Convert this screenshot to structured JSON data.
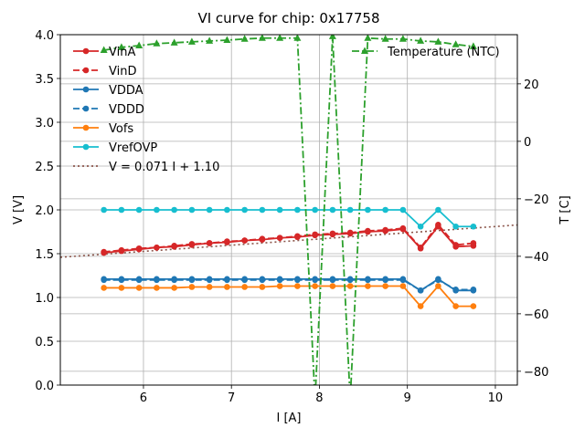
{
  "chart_data": {
    "type": "line",
    "title": "VI curve for chip: 0x17758",
    "xlabel": "I [A]",
    "ylabel": "V [V]",
    "y2label": "T [C]",
    "xlim": [
      5.055,
      10.25
    ],
    "ylim": [
      0.0,
      4.0
    ],
    "y2lim": [
      -84.8,
      37.1
    ],
    "grid": true,
    "xticks": [
      "6",
      "7",
      "8",
      "9",
      "10"
    ],
    "xtick_values": [
      6,
      7,
      8,
      9,
      10
    ],
    "yticks": [
      "0.0",
      "0.5",
      "1.0",
      "1.5",
      "2.0",
      "2.5",
      "3.0",
      "3.5",
      "4.0"
    ],
    "ytick_values": [
      0.0,
      0.5,
      1.0,
      1.5,
      2.0,
      2.5,
      3.0,
      3.5,
      4.0
    ],
    "y2ticks": [
      "20",
      "0",
      "−20",
      "−40",
      "−60",
      "−80"
    ],
    "y2tick_values": [
      20,
      0,
      -20,
      -40,
      -60,
      -80
    ],
    "x": [
      5.55,
      5.75,
      5.95,
      6.15,
      6.35,
      6.55,
      6.75,
      6.95,
      7.15,
      7.35,
      7.55,
      7.75,
      7.95,
      8.15,
      8.35,
      8.55,
      8.75,
      8.95,
      9.15,
      9.35,
      9.55,
      9.75
    ],
    "series": [
      {
        "name": "VinA",
        "axis": "left",
        "color": "#d62728",
        "style": "solid",
        "marker": "circle",
        "values": [
          1.51,
          1.53,
          1.55,
          1.57,
          1.58,
          1.6,
          1.62,
          1.63,
          1.65,
          1.66,
          1.68,
          1.69,
          1.71,
          1.72,
          1.73,
          1.75,
          1.76,
          1.78,
          1.56,
          1.81,
          1.58,
          1.59
        ]
      },
      {
        "name": "VinD",
        "axis": "left",
        "color": "#d62728",
        "style": "dashed",
        "marker": "circle",
        "values": [
          1.52,
          1.54,
          1.56,
          1.57,
          1.59,
          1.61,
          1.62,
          1.64,
          1.65,
          1.67,
          1.68,
          1.7,
          1.72,
          1.73,
          1.74,
          1.76,
          1.77,
          1.79,
          1.57,
          1.83,
          1.6,
          1.62
        ]
      },
      {
        "name": "VDDA",
        "axis": "left",
        "color": "#1f77b4",
        "style": "solid",
        "marker": "circle",
        "values": [
          1.21,
          1.21,
          1.21,
          1.21,
          1.21,
          1.21,
          1.21,
          1.21,
          1.21,
          1.21,
          1.21,
          1.21,
          1.21,
          1.21,
          1.21,
          1.21,
          1.21,
          1.21,
          1.08,
          1.21,
          1.08,
          1.08
        ]
      },
      {
        "name": "VDDD",
        "axis": "left",
        "color": "#1f77b4",
        "style": "dashed",
        "marker": "circle",
        "values": [
          1.2,
          1.2,
          1.2,
          1.2,
          1.2,
          1.2,
          1.2,
          1.2,
          1.2,
          1.2,
          1.2,
          1.2,
          1.2,
          1.2,
          1.2,
          1.2,
          1.2,
          1.2,
          1.08,
          1.2,
          1.09,
          1.09
        ]
      },
      {
        "name": "Vofs",
        "axis": "left",
        "color": "#ff7f0e",
        "style": "solid",
        "marker": "circle",
        "values": [
          1.11,
          1.11,
          1.11,
          1.11,
          1.11,
          1.12,
          1.12,
          1.12,
          1.12,
          1.12,
          1.13,
          1.13,
          1.13,
          1.13,
          1.13,
          1.13,
          1.13,
          1.13,
          0.9,
          1.13,
          0.9,
          0.9
        ]
      },
      {
        "name": "VrefOVP",
        "axis": "left",
        "color": "#17becf",
        "style": "solid",
        "marker": "circle",
        "values": [
          2.0,
          2.0,
          2.0,
          2.0,
          2.0,
          2.0,
          2.0,
          2.0,
          2.0,
          2.0,
          2.0,
          2.0,
          2.0,
          2.0,
          2.0,
          2.0,
          2.0,
          2.0,
          1.81,
          2.0,
          1.81,
          1.81
        ]
      },
      {
        "name": "Temperature (NTC)",
        "axis": "right",
        "color": "#2ca02c",
        "style": "dashdot",
        "marker": "triangle",
        "values": [
          31.7,
          32.7,
          33.3,
          34.0,
          34.3,
          34.6,
          34.9,
          35.2,
          35.6,
          35.9,
          35.9,
          35.9,
          -90,
          36.5,
          -90,
          35.9,
          35.6,
          35.6,
          34.9,
          34.6,
          33.7,
          33.0
        ]
      }
    ],
    "fit": {
      "name": "V = 0.071 I + 1.10",
      "slope": 0.071,
      "intercept": 1.1,
      "color": "#8c564b",
      "style": "dotted"
    },
    "legend": {
      "left_placement": "top-left",
      "right_placement": "top-right"
    }
  }
}
